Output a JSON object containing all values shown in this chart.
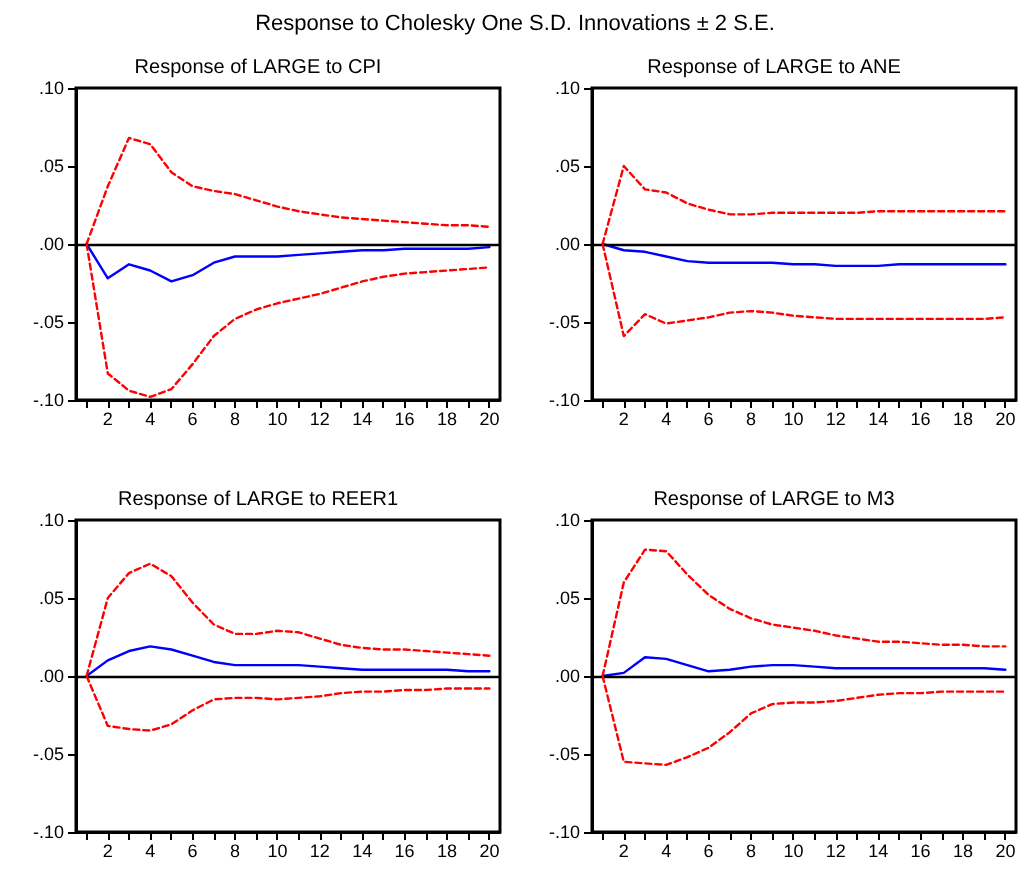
{
  "chart_data": [
    {
      "type": "line",
      "title": "Response of LARGE to CPI",
      "annotations": [
        "Response to Cholesky One S.D. Innovations ± 2 S.E."
      ],
      "x": [
        1,
        2,
        3,
        4,
        5,
        6,
        7,
        8,
        9,
        10,
        11,
        12,
        13,
        14,
        15,
        16,
        17,
        18,
        19,
        20
      ],
      "xlim": [
        0.5,
        20.5
      ],
      "xticks": [
        {
          "value": 1,
          "label": null
        },
        2,
        {
          "value": 3,
          "label": null
        },
        4,
        {
          "value": 5,
          "label": null
        },
        6,
        {
          "value": 7,
          "label": null
        },
        8,
        {
          "value": 9,
          "label": null
        },
        10,
        {
          "value": 11,
          "label": null
        },
        12,
        {
          "value": 13,
          "label": null
        },
        14,
        {
          "value": 15,
          "label": null
        },
        16,
        {
          "value": 17,
          "label": null
        },
        18,
        {
          "value": 19,
          "label": null
        },
        20
      ],
      "ylim": [
        -0.1,
        0.1
      ],
      "yticks": [
        {
          "value": -0.1,
          "label": "-.10"
        },
        {
          "value": -0.05,
          "label": "-.05"
        },
        {
          "value": 0,
          "label": ".00"
        },
        {
          "value": 0.05,
          "label": ".05"
        },
        {
          "value": 0.1,
          "label": ".10"
        }
      ],
      "grid": false,
      "ref_lines": [
        {
          "axis": "y",
          "value": 0,
          "color": "#000000"
        }
      ],
      "series": [
        {
          "color": "#0000ff",
          "line_style": "solid",
          "values": [
            0,
            -0.022,
            -0.013,
            -0.017,
            -0.024,
            -0.02,
            -0.012,
            -0.008,
            -0.008,
            -0.008,
            -0.007,
            -0.006,
            -0.005,
            -0.004,
            -0.004,
            -0.003,
            -0.003,
            -0.003,
            -0.003,
            -0.002
          ]
        },
        {
          "color": "#ff0000",
          "line_style": "dashed",
          "values": [
            0,
            0.037,
            0.068,
            0.064,
            0.046,
            0.037,
            0.034,
            0.032,
            0.028,
            0.024,
            0.021,
            0.019,
            0.017,
            0.016,
            0.015,
            0.014,
            0.013,
            0.012,
            0.012,
            0.011
          ]
        },
        {
          "color": "#ff0000",
          "line_style": "dashed",
          "values": [
            0,
            -0.083,
            -0.094,
            -0.098,
            -0.093,
            -0.077,
            -0.059,
            -0.048,
            -0.042,
            -0.038,
            -0.035,
            -0.032,
            -0.028,
            -0.024,
            -0.021,
            -0.019,
            -0.018,
            -0.017,
            -0.016,
            -0.015
          ]
        }
      ]
    },
    {
      "type": "line",
      "title": "Response of LARGE to ANE",
      "x": [
        1,
        2,
        3,
        4,
        5,
        6,
        7,
        8,
        9,
        10,
        11,
        12,
        13,
        14,
        15,
        16,
        17,
        18,
        19,
        20
      ],
      "xlim": [
        0.5,
        20.5
      ],
      "xticks": [
        {
          "value": 1,
          "label": null
        },
        2,
        {
          "value": 3,
          "label": null
        },
        4,
        {
          "value": 5,
          "label": null
        },
        6,
        {
          "value": 7,
          "label": null
        },
        8,
        {
          "value": 9,
          "label": null
        },
        10,
        {
          "value": 11,
          "label": null
        },
        12,
        {
          "value": 13,
          "label": null
        },
        14,
        {
          "value": 15,
          "label": null
        },
        16,
        {
          "value": 17,
          "label": null
        },
        18,
        {
          "value": 19,
          "label": null
        },
        20
      ],
      "ylim": [
        -0.1,
        0.1
      ],
      "yticks": [
        {
          "value": -0.1,
          "label": "-.10"
        },
        {
          "value": -0.05,
          "label": "-.05"
        },
        {
          "value": 0,
          "label": ".00"
        },
        {
          "value": 0.05,
          "label": ".05"
        },
        {
          "value": 0.1,
          "label": ".10"
        }
      ],
      "grid": false,
      "ref_lines": [
        {
          "axis": "y",
          "value": 0,
          "color": "#000000"
        }
      ],
      "series": [
        {
          "color": "#0000ff",
          "line_style": "solid",
          "values": [
            0,
            -0.004,
            -0.005,
            -0.008,
            -0.011,
            -0.012,
            -0.012,
            -0.012,
            -0.012,
            -0.013,
            -0.013,
            -0.014,
            -0.014,
            -0.014,
            -0.013,
            -0.013,
            -0.013,
            -0.013,
            -0.013,
            -0.013
          ]
        },
        {
          "color": "#ff0000",
          "line_style": "dashed",
          "values": [
            0,
            0.05,
            0.035,
            0.033,
            0.026,
            0.022,
            0.019,
            0.019,
            0.02,
            0.02,
            0.02,
            0.02,
            0.02,
            0.021,
            0.021,
            0.021,
            0.021,
            0.021,
            0.021,
            0.021
          ]
        },
        {
          "color": "#ff0000",
          "line_style": "dashed",
          "values": [
            0,
            -0.059,
            -0.045,
            -0.051,
            -0.049,
            -0.047,
            -0.044,
            -0.043,
            -0.044,
            -0.046,
            -0.047,
            -0.048,
            -0.048,
            -0.048,
            -0.048,
            -0.048,
            -0.048,
            -0.048,
            -0.048,
            -0.047
          ]
        }
      ]
    },
    {
      "type": "line",
      "title": "Response of LARGE to REER1",
      "x": [
        1,
        2,
        3,
        4,
        5,
        6,
        7,
        8,
        9,
        10,
        11,
        12,
        13,
        14,
        15,
        16,
        17,
        18,
        19,
        20
      ],
      "xlim": [
        0.5,
        20.5
      ],
      "xticks": [
        {
          "value": 1,
          "label": null
        },
        2,
        {
          "value": 3,
          "label": null
        },
        4,
        {
          "value": 5,
          "label": null
        },
        6,
        {
          "value": 7,
          "label": null
        },
        8,
        {
          "value": 9,
          "label": null
        },
        10,
        {
          "value": 11,
          "label": null
        },
        12,
        {
          "value": 13,
          "label": null
        },
        14,
        {
          "value": 15,
          "label": null
        },
        16,
        {
          "value": 17,
          "label": null
        },
        18,
        {
          "value": 19,
          "label": null
        },
        20
      ],
      "ylim": [
        -0.1,
        0.1
      ],
      "yticks": [
        {
          "value": -0.1,
          "label": "-.10"
        },
        {
          "value": -0.05,
          "label": "-.05"
        },
        {
          "value": 0,
          "label": ".00"
        },
        {
          "value": 0.05,
          "label": ".05"
        },
        {
          "value": 0.1,
          "label": ".10"
        }
      ],
      "grid": false,
      "ref_lines": [
        {
          "axis": "y",
          "value": 0,
          "color": "#000000"
        }
      ],
      "series": [
        {
          "color": "#0000ff",
          "line_style": "solid",
          "values": [
            0,
            0.01,
            0.016,
            0.019,
            0.017,
            0.013,
            0.009,
            0.007,
            0.007,
            0.007,
            0.007,
            0.006,
            0.005,
            0.004,
            0.004,
            0.004,
            0.004,
            0.004,
            0.003,
            0.003
          ]
        },
        {
          "color": "#ff0000",
          "line_style": "dashed",
          "values": [
            0,
            0.05,
            0.066,
            0.072,
            0.064,
            0.047,
            0.033,
            0.027,
            0.027,
            0.029,
            0.028,
            0.024,
            0.02,
            0.018,
            0.017,
            0.017,
            0.016,
            0.015,
            0.014,
            0.013
          ]
        },
        {
          "color": "#ff0000",
          "line_style": "dashed",
          "values": [
            0,
            -0.032,
            -0.034,
            -0.035,
            -0.031,
            -0.022,
            -0.015,
            -0.014,
            -0.014,
            -0.015,
            -0.014,
            -0.013,
            -0.011,
            -0.01,
            -0.01,
            -0.009,
            -0.009,
            -0.008,
            -0.008,
            -0.008
          ]
        }
      ]
    },
    {
      "type": "line",
      "title": "Response of LARGE to M3",
      "x": [
        1,
        2,
        3,
        4,
        5,
        6,
        7,
        8,
        9,
        10,
        11,
        12,
        13,
        14,
        15,
        16,
        17,
        18,
        19,
        20
      ],
      "xlim": [
        0.5,
        20.5
      ],
      "xticks": [
        {
          "value": 1,
          "label": null
        },
        2,
        {
          "value": 3,
          "label": null
        },
        4,
        {
          "value": 5,
          "label": null
        },
        6,
        {
          "value": 7,
          "label": null
        },
        8,
        {
          "value": 9,
          "label": null
        },
        10,
        {
          "value": 11,
          "label": null
        },
        12,
        {
          "value": 13,
          "label": null
        },
        14,
        {
          "value": 15,
          "label": null
        },
        16,
        {
          "value": 17,
          "label": null
        },
        18,
        {
          "value": 19,
          "label": null
        },
        20
      ],
      "ylim": [
        -0.1,
        0.1
      ],
      "yticks": [
        {
          "value": -0.1,
          "label": "-.10"
        },
        {
          "value": -0.05,
          "label": "-.05"
        },
        {
          "value": 0,
          "label": ".00"
        },
        {
          "value": 0.05,
          "label": ".05"
        },
        {
          "value": 0.1,
          "label": ".10"
        }
      ],
      "grid": false,
      "ref_lines": [
        {
          "axis": "y",
          "value": 0,
          "color": "#000000"
        }
      ],
      "series": [
        {
          "color": "#0000ff",
          "line_style": "solid",
          "values": [
            0,
            0.002,
            0.012,
            0.011,
            0.007,
            0.003,
            0.004,
            0.006,
            0.007,
            0.007,
            0.006,
            0.005,
            0.005,
            0.005,
            0.005,
            0.005,
            0.005,
            0.005,
            0.005,
            0.004
          ]
        },
        {
          "color": "#ff0000",
          "line_style": "dashed",
          "values": [
            0,
            0.06,
            0.081,
            0.08,
            0.065,
            0.052,
            0.043,
            0.037,
            0.033,
            0.031,
            0.029,
            0.026,
            0.024,
            0.022,
            0.022,
            0.021,
            0.02,
            0.02,
            0.019,
            0.019
          ]
        },
        {
          "color": "#ff0000",
          "line_style": "dashed",
          "values": [
            0,
            -0.055,
            -0.056,
            -0.057,
            -0.052,
            -0.046,
            -0.036,
            -0.024,
            -0.018,
            -0.017,
            -0.017,
            -0.016,
            -0.014,
            -0.012,
            -0.011,
            -0.011,
            -0.01,
            -0.01,
            -0.01,
            -0.01
          ]
        }
      ]
    }
  ]
}
